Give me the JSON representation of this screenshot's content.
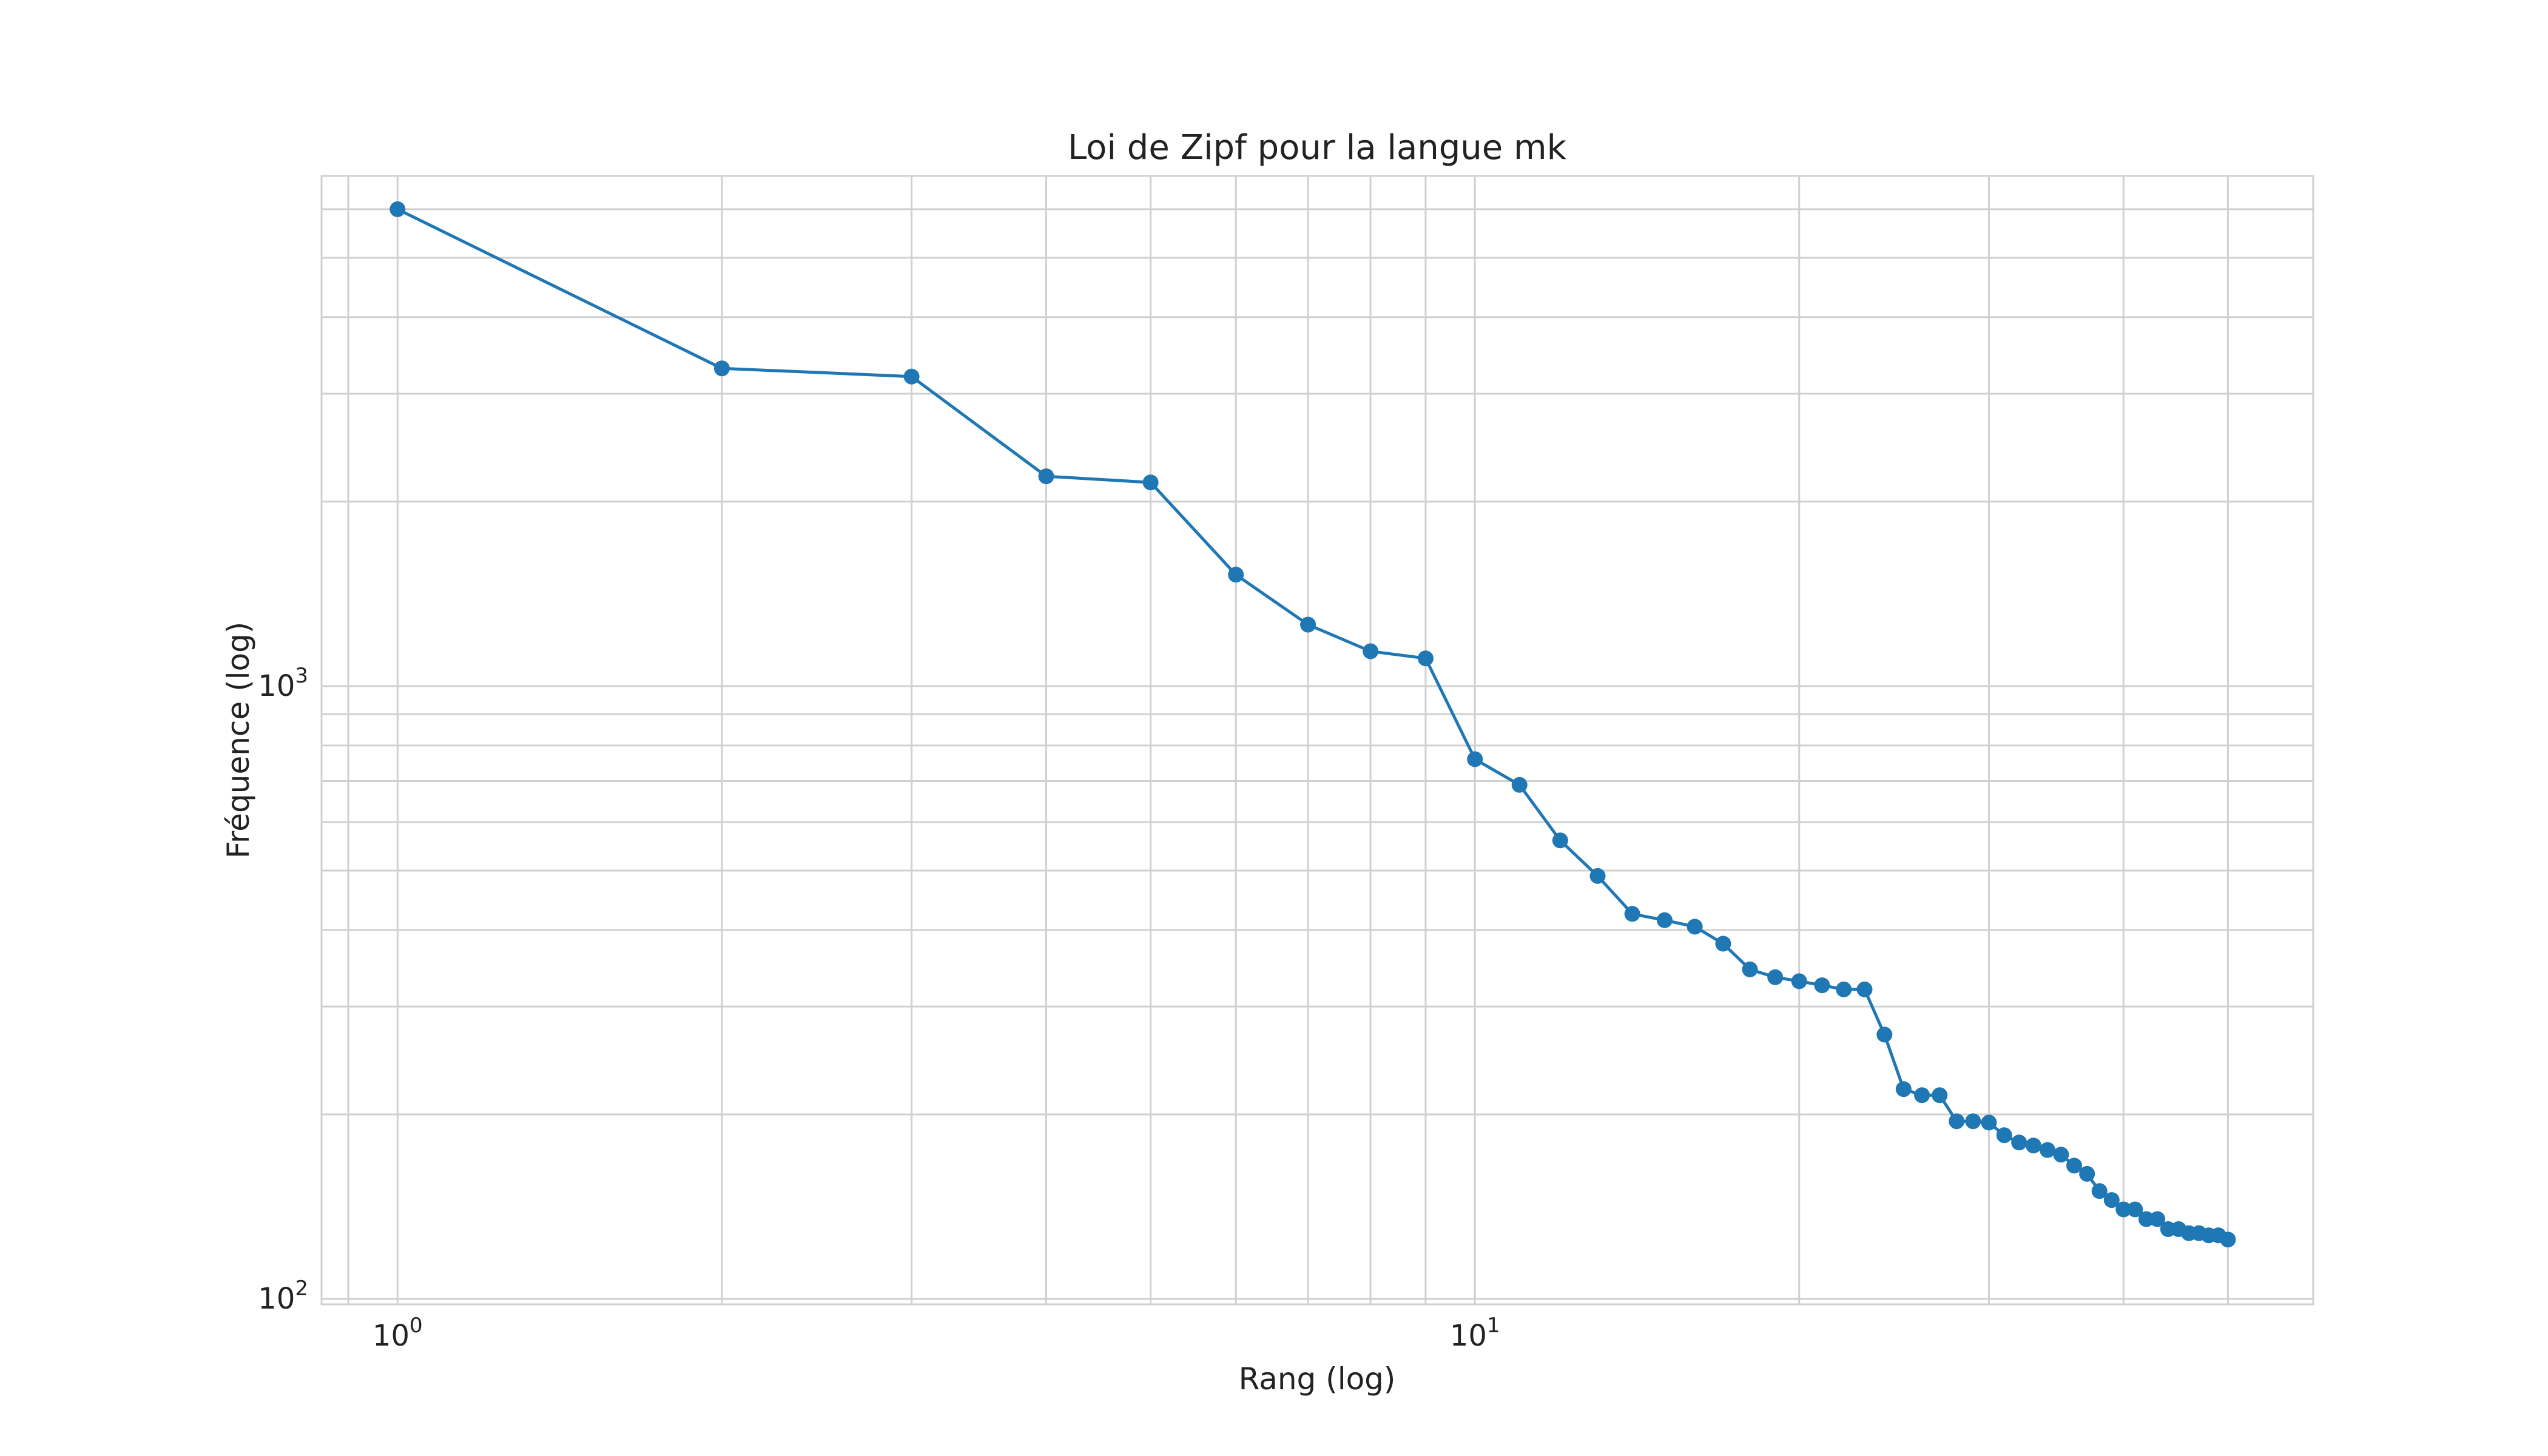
{
  "chart_data": {
    "type": "line",
    "title": "Loi de Zipf pour la langue mk",
    "xlabel": "Rang (log)",
    "ylabel": "Fréquence (log)",
    "xscale": "log",
    "yscale": "log",
    "xlim": [
      0.85,
      60
    ],
    "ylim": [
      98,
      6800
    ],
    "grid": true,
    "marker": "circle",
    "color": "#1f77b4",
    "x_ticks": [
      {
        "base": "10",
        "exp": "0",
        "value": 1
      },
      {
        "base": "10",
        "exp": "1",
        "value": 10
      }
    ],
    "y_ticks": [
      {
        "base": "10",
        "exp": "2",
        "value": 100
      },
      {
        "base": "10",
        "exp": "3",
        "value": 1000
      }
    ],
    "series": [
      {
        "x": [
          1,
          2,
          3,
          4,
          5,
          6,
          7,
          8,
          9,
          10,
          11,
          12,
          13,
          14,
          15,
          16,
          17,
          18,
          19,
          20,
          21,
          22,
          23,
          24,
          25,
          26,
          27,
          28,
          29,
          30,
          31,
          32,
          33,
          34,
          35,
          36,
          37,
          38,
          39,
          40,
          41,
          42,
          43,
          44,
          45,
          46,
          47,
          48,
          49,
          50
        ],
        "y": [
          6000,
          3300,
          3200,
          2200,
          2150,
          1520,
          1260,
          1140,
          1110,
          760,
          690,
          560,
          490,
          425,
          415,
          405,
          380,
          345,
          335,
          330,
          325,
          320,
          320,
          270,
          220,
          215,
          215,
          195,
          195,
          194,
          185,
          180,
          178,
          175,
          172,
          165,
          160,
          150,
          145,
          140,
          140,
          135,
          135,
          130,
          130,
          128,
          128,
          127,
          127,
          125
        ]
      }
    ]
  }
}
